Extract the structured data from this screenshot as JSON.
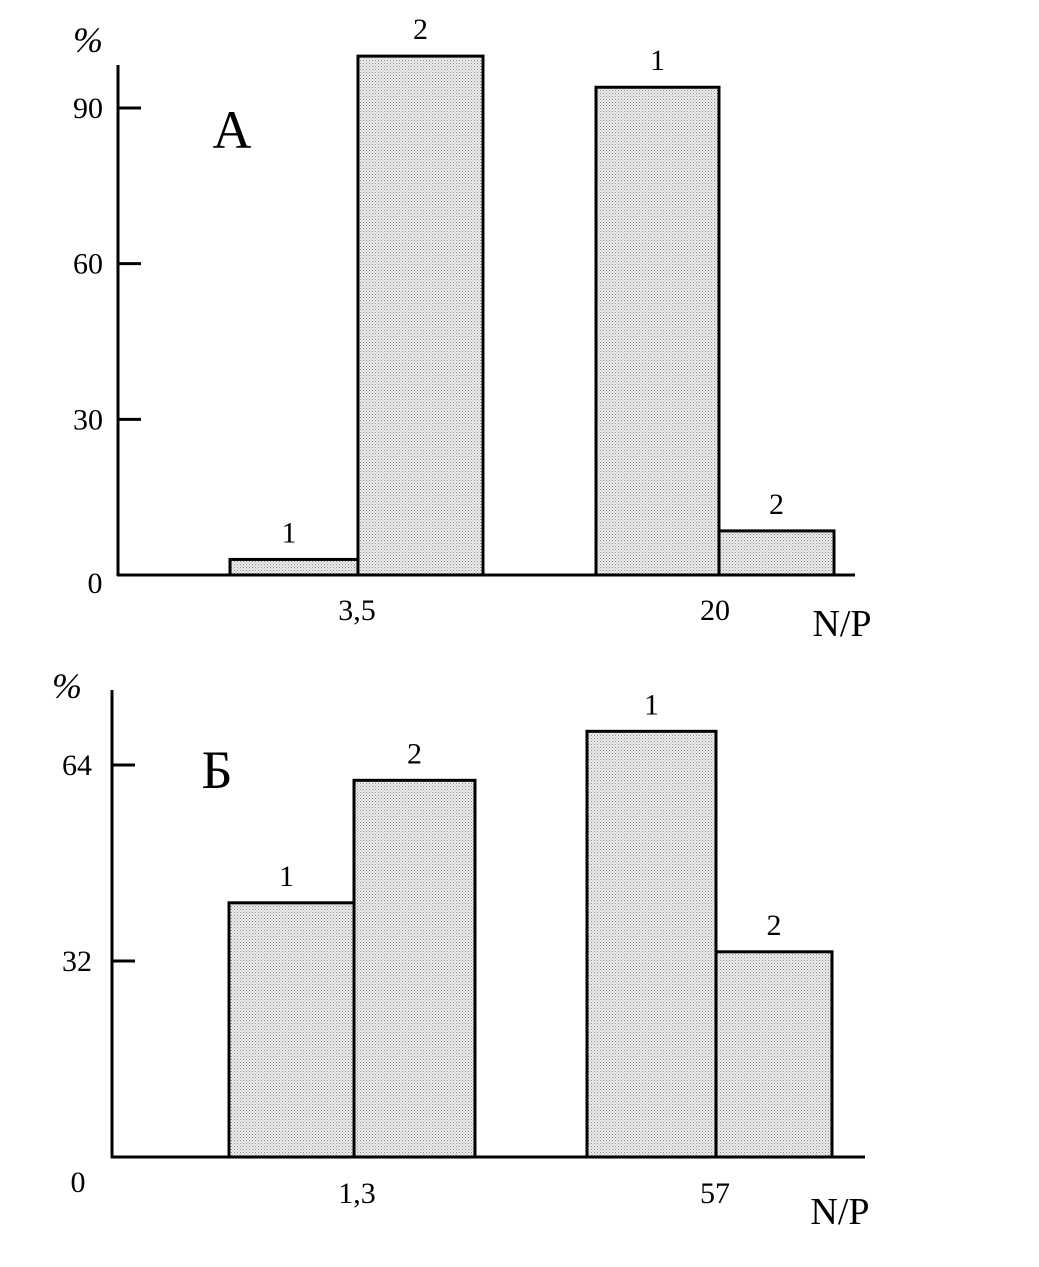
{
  "chart_data": [
    {
      "type": "bar",
      "panel_label": "А",
      "ylabel": "%",
      "xlabel": "N/P",
      "categories": [
        "3,5",
        "20"
      ],
      "series": [
        {
          "bar_label": "1",
          "values": [
            3,
            94
          ]
        },
        {
          "bar_label": "2",
          "values": [
            100,
            8.5
          ]
        }
      ],
      "yticks": [
        "0",
        "30",
        "60",
        "90"
      ],
      "ylim": [
        0,
        100
      ],
      "grid": false,
      "legend": "none"
    },
    {
      "type": "bar",
      "panel_label": "Б",
      "ylabel": "%",
      "xlabel": "N/P",
      "categories": [
        "1,3",
        "57"
      ],
      "series": [
        {
          "bar_label": "1",
          "values": [
            41.5,
            69.5
          ]
        },
        {
          "bar_label": "2",
          "values": [
            61.5,
            33.5
          ]
        }
      ],
      "yticks": [
        "0",
        "32",
        "64"
      ],
      "ylim": [
        0,
        72
      ],
      "grid": false,
      "legend": "none"
    }
  ],
  "colors": {
    "bar_fill": "#d7d7d7",
    "stroke": "#000000"
  }
}
